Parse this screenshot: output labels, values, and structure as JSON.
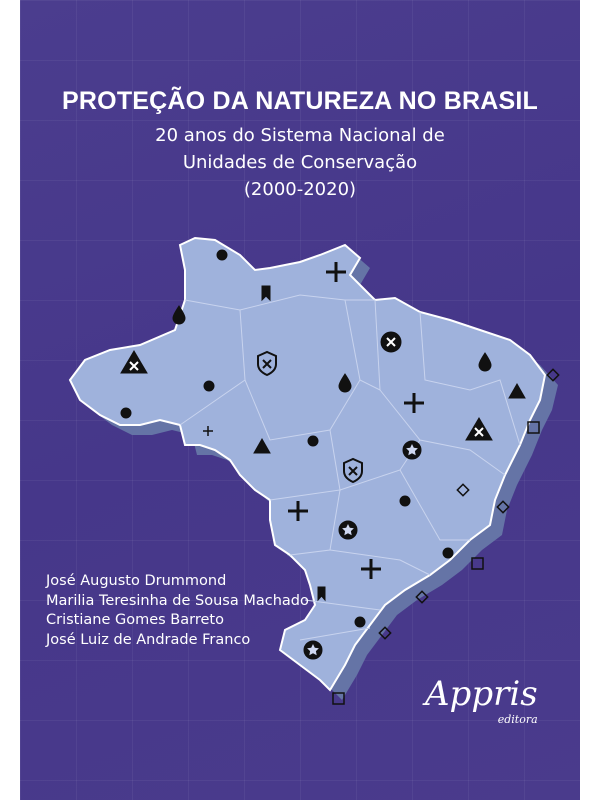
{
  "cover": {
    "title": "PROTEÇÃO DA NATUREZA NO BRASIL",
    "subtitle_line1": "20 anos do Sistema Nacional de",
    "subtitle_line2": "Unidades de Conservação",
    "subtitle_line3": "(2000-2020)",
    "authors": [
      "José Augusto Drummond",
      "Marilia Teresinha de Sousa Machado",
      "Cristiane Gomes Barreto",
      "José Luiz de Andrade Franco"
    ],
    "publisher": {
      "name": "Appris",
      "sub": "editora"
    }
  },
  "colors": {
    "background": "#47398b",
    "map": "#9fb2dc",
    "map_shadow": "#6574a6",
    "marker": "#111111"
  },
  "map_icons": [
    "circle",
    "plus",
    "bookmark",
    "drop",
    "x-triangle",
    "x-circle",
    "x-shield",
    "star-circle",
    "triangle",
    "diamond",
    "square"
  ]
}
